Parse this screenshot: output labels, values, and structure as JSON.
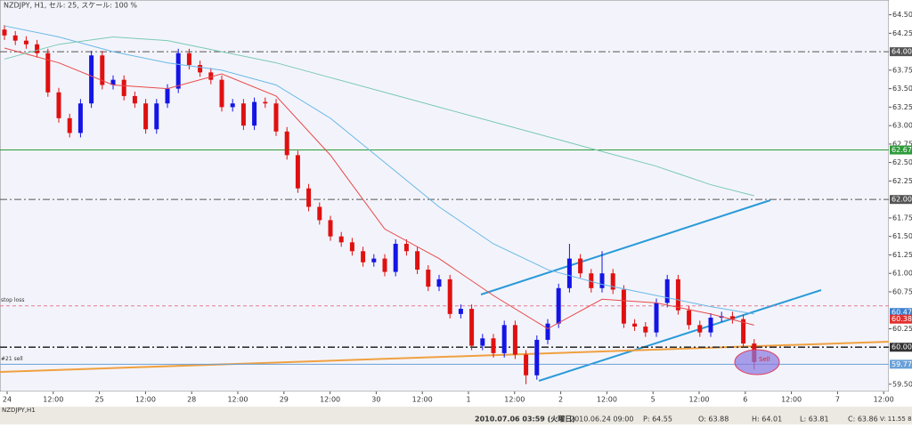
{
  "chart_data": {
    "type": "candlestick",
    "title": "NZDJPY, H1, セル: 25, スケール: 100 %",
    "symbol_tab": "NZDJPY,H1",
    "open": [
      64.3,
      64.22,
      64.15,
      64.1,
      63.98,
      63.45,
      63.1,
      62.9,
      63.3,
      63.95,
      63.55,
      63.62,
      63.4,
      63.3,
      62.95,
      63.3,
      63.5,
      63.98,
      63.82,
      63.72,
      63.62,
      63.25,
      63.3,
      63.0,
      63.32,
      63.3,
      62.92,
      62.6,
      62.15,
      61.9,
      61.72,
      61.5,
      61.42,
      61.3,
      61.15,
      61.2,
      61.02,
      61.4,
      61.3,
      61.05,
      60.82,
      60.92,
      60.45,
      60.52,
      60.02,
      60.12,
      59.92,
      60.3,
      59.9,
      59.62,
      60.1,
      60.32,
      60.8,
      61.2,
      61.0,
      60.8,
      61.0,
      60.78,
      60.32,
      60.28,
      60.2,
      60.6,
      60.92,
      60.5,
      60.3,
      60.2,
      60.4,
      60.42,
      60.38,
      60.05
    ],
    "high": [
      64.36,
      64.28,
      64.21,
      64.16,
      64.04,
      63.51,
      63.16,
      63.36,
      64.01,
      64.01,
      63.68,
      63.68,
      63.46,
      63.36,
      63.36,
      63.56,
      64.04,
      64.04,
      63.88,
      63.78,
      63.68,
      63.36,
      63.36,
      63.38,
      63.38,
      63.36,
      62.98,
      62.66,
      62.21,
      61.96,
      61.78,
      61.56,
      61.48,
      61.36,
      61.26,
      61.26,
      61.46,
      61.46,
      61.36,
      61.11,
      60.98,
      60.98,
      60.58,
      60.58,
      60.18,
      60.18,
      60.36,
      60.36,
      59.96,
      60.16,
      60.38,
      60.86,
      61.4,
      61.26,
      61.06,
      61.3,
      61.06,
      60.84,
      60.38,
      60.34,
      60.66,
      60.98,
      60.98,
      60.56,
      60.36,
      60.46,
      60.48,
      60.48,
      60.44,
      60.11
    ],
    "low": [
      64.16,
      64.09,
      64.04,
      63.92,
      63.39,
      63.04,
      62.84,
      62.84,
      63.24,
      63.49,
      63.49,
      63.34,
      63.24,
      62.89,
      62.89,
      63.24,
      63.44,
      63.76,
      63.66,
      63.56,
      63.19,
      63.19,
      62.94,
      62.94,
      63.24,
      62.86,
      62.54,
      62.09,
      61.84,
      61.66,
      61.44,
      61.36,
      61.24,
      61.09,
      61.09,
      60.96,
      60.96,
      61.24,
      60.99,
      60.76,
      60.76,
      60.39,
      60.39,
      59.96,
      59.96,
      59.86,
      59.86,
      59.84,
      59.5,
      59.56,
      60.04,
      60.26,
      60.74,
      60.94,
      60.74,
      60.74,
      60.72,
      60.26,
      60.22,
      60.14,
      60.14,
      60.54,
      60.44,
      60.24,
      60.14,
      60.14,
      60.34,
      60.32,
      59.99,
      59.7
    ],
    "close": [
      64.22,
      64.15,
      64.1,
      63.98,
      63.45,
      63.1,
      62.9,
      63.3,
      63.95,
      63.55,
      63.62,
      63.4,
      63.3,
      62.95,
      63.3,
      63.5,
      63.98,
      63.82,
      63.72,
      63.62,
      63.25,
      63.3,
      63.0,
      63.32,
      63.3,
      62.92,
      62.6,
      62.15,
      61.9,
      61.72,
      61.5,
      61.42,
      61.3,
      61.15,
      61.2,
      61.02,
      61.4,
      61.3,
      61.05,
      60.82,
      60.92,
      60.45,
      60.52,
      60.02,
      60.12,
      59.92,
      60.3,
      59.9,
      59.62,
      60.1,
      60.32,
      60.8,
      61.2,
      61.0,
      60.8,
      61.0,
      60.78,
      60.32,
      60.28,
      60.2,
      60.6,
      60.92,
      60.5,
      60.3,
      60.2,
      60.4,
      60.42,
      60.38,
      60.05,
      59.8
    ],
    "up_color": "#1414e6",
    "down_color": "#e01010",
    "series": [
      {
        "color": "#e84a4a",
        "x": [
          0,
          5,
          10,
          15,
          20,
          25,
          30,
          35,
          40,
          45,
          50,
          55,
          60,
          65,
          69
        ],
        "values": [
          64.05,
          63.85,
          63.55,
          63.5,
          63.7,
          63.4,
          62.6,
          61.6,
          61.2,
          60.7,
          60.25,
          60.65,
          60.6,
          60.45,
          60.3
        ]
      },
      {
        "color": "#6ab8e8",
        "x": [
          0,
          5,
          10,
          15,
          20,
          25,
          30,
          35,
          40,
          45,
          50,
          55,
          60,
          65,
          69
        ],
        "values": [
          64.35,
          64.2,
          64.0,
          63.85,
          63.75,
          63.55,
          63.1,
          62.5,
          61.9,
          61.4,
          61.05,
          60.85,
          60.7,
          60.55,
          60.45
        ]
      },
      {
        "color": "#7cc9b4",
        "x": [
          0,
          5,
          10,
          15,
          20,
          25,
          30,
          35,
          40,
          45,
          50,
          55,
          60,
          65,
          69
        ],
        "values": [
          63.9,
          64.1,
          64.2,
          64.15,
          64.0,
          63.85,
          63.65,
          63.45,
          63.25,
          63.05,
          62.85,
          62.65,
          62.45,
          62.2,
          62.05
        ]
      }
    ],
    "ylim": [
      59.22,
      64.7
    ],
    "yticks": [
      {
        "value": 64.5,
        "label": "64.50"
      },
      {
        "value": 64.25,
        "label": "64.25"
      },
      {
        "value": 63.75,
        "label": "63.75"
      },
      {
        "value": 63.5,
        "label": "63.50"
      },
      {
        "value": 63.25,
        "label": "63.25"
      },
      {
        "value": 63.0,
        "label": "63.00"
      },
      {
        "value": 62.75,
        "label": "62.75"
      },
      {
        "value": 62.5,
        "label": "62.50"
      },
      {
        "value": 62.25,
        "label": "62.25"
      },
      {
        "value": 61.75,
        "label": "61.75"
      },
      {
        "value": 61.5,
        "label": "61.50"
      },
      {
        "value": 61.25,
        "label": "61.25"
      },
      {
        "value": 61.0,
        "label": "61.00"
      },
      {
        "value": 60.75,
        "label": "60.75"
      },
      {
        "value": 60.25,
        "label": "60.25"
      },
      {
        "value": 59.5,
        "label": "59.50"
      }
    ],
    "levels": [
      {
        "value": 64.0,
        "label": "64.00",
        "color": "#555555",
        "style": "dashdot"
      },
      {
        "value": 62.67,
        "label": "62.67",
        "color": "#2e9a3a",
        "style": "solid"
      },
      {
        "value": 62.0,
        "label": "62.00",
        "color": "#555555",
        "style": "dashdot"
      },
      {
        "value": 60.56,
        "text": "stop loss",
        "color": "#e87a90",
        "style": "dashed"
      },
      {
        "value": 60.47,
        "label": "60.47",
        "color": "#3b7fd0",
        "style": "none"
      },
      {
        "value": 60.38,
        "label": "60.38",
        "color": "#e03030",
        "style": "none"
      },
      {
        "value": 60.0,
        "label": "60.00",
        "color": "#333333",
        "style": "dashdot"
      },
      {
        "value": 59.77,
        "label": "59.77",
        "text": "#21 sell",
        "color": "#6aa0d8",
        "style": "solid"
      }
    ],
    "sell_marker": "Sell",
    "xlabels": [
      "24",
      "12:00",
      "25",
      "12:00",
      "28",
      "12:00",
      "29",
      "12:00",
      "30",
      "12:00",
      "1",
      "12:00",
      "2",
      "12:00",
      "5",
      "12:00",
      "6",
      "12:00",
      "7",
      "12:00"
    ],
    "status": [
      "2010.07.06 03:59 (火曜日)",
      "2010.06.24 09:00",
      "P: 64.55",
      "O: 63.88",
      "H: 64.01",
      "L: 63.81",
      "C: 63.86",
      "V: 11.55 8"
    ]
  }
}
